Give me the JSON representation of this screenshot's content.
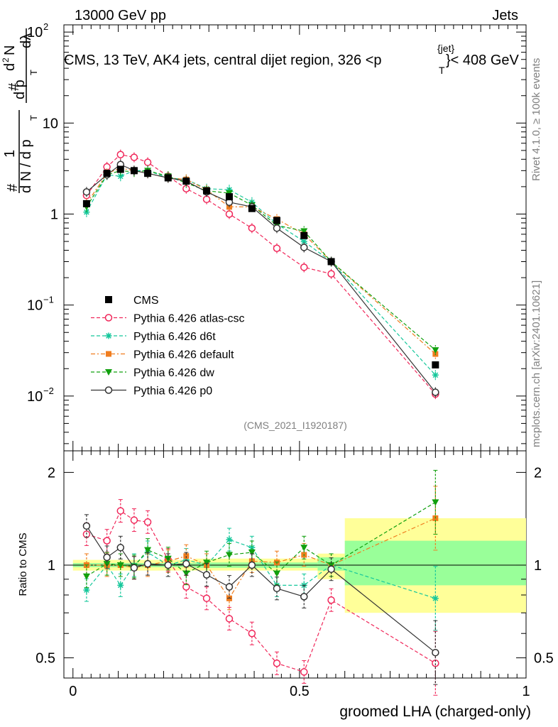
{
  "header": {
    "energy_label": "13000 GeV pp",
    "category_label": "Jets",
    "title": "CMS, 13 TeV, AK4 jets, central dijet region, 326 <p",
    "title_sup": "{jet}",
    "title_sub": "T",
    "title_tail": "}< 408 GeV"
  },
  "side_labels": {
    "rivet": "Rivet 4.1.0, ≥ 100k events",
    "mcplots": "mcplots.cern.ch [arXiv:2401.10621]"
  },
  "analysis_ref": "(CMS_2021_I1920187)",
  "y_axis_main": {
    "parts": [
      "#",
      "1",
      "d N / d p",
      "T",
      "#",
      "d p",
      "T",
      "d",
      "2",
      "N",
      "dλ"
    ]
  },
  "y_axis_ratio_label": "Ratio to CMS",
  "x_axis_label": "groomed LHA (charged-only)",
  "chart_data": [
    {
      "type": "line",
      "panel": "main",
      "yscale": "log",
      "ylim": [
        0.0025,
        120
      ],
      "xlim": [
        -0.02,
        1.0
      ],
      "y_ticks": [
        {
          "value": 0.01,
          "base": "10",
          "exp": "−2"
        },
        {
          "value": 0.1,
          "base": "10",
          "exp": "−1"
        },
        {
          "value": 1,
          "label": "1"
        },
        {
          "value": 10,
          "label": "10"
        },
        {
          "value": 100,
          "base": "10",
          "exp": "2"
        }
      ],
      "x": [
        0.03,
        0.075,
        0.105,
        0.135,
        0.165,
        0.21,
        0.25,
        0.295,
        0.345,
        0.395,
        0.45,
        0.51,
        0.57,
        0.8
      ],
      "data": {
        "name": "CMS",
        "values": [
          1.3,
          2.8,
          3.1,
          3.0,
          2.8,
          2.5,
          2.3,
          1.8,
          1.55,
          1.15,
          0.85,
          0.58,
          0.3,
          0.022
        ]
      },
      "series": [
        {
          "name": "Pythia 6.426 atlas-csc",
          "color": "#f0275a",
          "marker": "open-circle",
          "dash": "5,3",
          "values": [
            1.6,
            3.3,
            4.5,
            4.2,
            3.7,
            2.6,
            1.9,
            1.45,
            1.0,
            0.7,
            0.42,
            0.26,
            0.22,
            0.0105
          ],
          "ratio": [
            1.26,
            1.2,
            1.5,
            1.4,
            1.38,
            1.04,
            0.85,
            0.78,
            0.67,
            0.6,
            0.48,
            0.45,
            0.77,
            0.48
          ]
        },
        {
          "name": "Pythia 6.426 d6t",
          "color": "#15c79b",
          "marker": "star",
          "dash": "5,3",
          "values": [
            1.05,
            2.7,
            2.6,
            3.0,
            3.0,
            2.5,
            2.4,
            1.9,
            1.85,
            1.35,
            0.78,
            0.5,
            0.3,
            0.017
          ],
          "ratio": [
            0.83,
            1.0,
            0.86,
            1.0,
            1.1,
            1.0,
            1.04,
            1.0,
            1.21,
            1.14,
            0.86,
            0.86,
            1.0,
            0.78
          ]
        },
        {
          "name": "Pythia 6.426 default",
          "color": "#f07d1e",
          "marker": "filled-square",
          "dash": "6,3,2,3",
          "values": [
            1.3,
            2.8,
            3.2,
            3.0,
            2.8,
            2.5,
            2.4,
            1.85,
            1.2,
            1.2,
            0.88,
            0.6,
            0.3,
            0.029
          ],
          "ratio": [
            1.0,
            1.0,
            1.0,
            0.98,
            1.0,
            1.03,
            1.07,
            1.0,
            0.78,
            1.03,
            1.02,
            1.08,
            1.0,
            1.42
          ]
        },
        {
          "name": "Pythia 6.426 dw",
          "color": "#11a00e",
          "marker": "filled-triangle-down",
          "dash": "5,3",
          "values": [
            1.2,
            2.7,
            3.0,
            2.9,
            3.0,
            2.6,
            2.2,
            1.8,
            1.7,
            1.25,
            0.75,
            0.65,
            0.3,
            0.032
          ],
          "ratio": [
            0.92,
            1.01,
            1.0,
            0.99,
            1.12,
            1.05,
            0.94,
            1.02,
            1.08,
            1.1,
            0.94,
            1.14,
            1.0,
            1.6
          ]
        },
        {
          "name": "Pythia 6.426 p0",
          "color": "#333333",
          "marker": "open-circle",
          "dash": "",
          "values": [
            1.75,
            2.7,
            3.5,
            3.0,
            2.8,
            2.5,
            2.3,
            1.75,
            1.35,
            1.2,
            0.7,
            0.43,
            0.3,
            0.011
          ],
          "ratio": [
            1.34,
            1.06,
            1.14,
            0.98,
            1.01,
            1.0,
            1.01,
            0.93,
            0.85,
            1.0,
            0.84,
            0.79,
            0.97,
            0.52
          ]
        }
      ],
      "legend": [
        "CMS",
        "Pythia 6.426 atlas-csc",
        "Pythia 6.426 d6t",
        "Pythia 6.426 default",
        "Pythia 6.426 dw",
        "Pythia 6.426 p0"
      ],
      "legend_position": "left-middle"
    },
    {
      "type": "line",
      "panel": "ratio",
      "yscale": "log",
      "ylim": [
        0.43,
        2.35
      ],
      "xlim": [
        -0.02,
        1.0
      ],
      "y_ticks": [
        {
          "value": 0.5,
          "label": "0.5"
        },
        {
          "value": 1,
          "label": "1"
        },
        {
          "value": 2,
          "label": "2"
        }
      ],
      "x_ticks": [
        {
          "value": 0,
          "label": "0"
        },
        {
          "value": 0.5,
          "label": "0.5"
        },
        {
          "value": 1,
          "label": "1"
        }
      ],
      "reference_line": 1,
      "uncertainty_bands": [
        {
          "x0": 0.0,
          "x1": 0.27,
          "stat_lo": 0.985,
          "stat_hi": 1.015,
          "tot_lo": 0.96,
          "tot_hi": 1.04
        },
        {
          "x0": 0.27,
          "x1": 0.54,
          "stat_lo": 0.98,
          "stat_hi": 1.02,
          "tot_lo": 0.96,
          "tot_hi": 1.05
        },
        {
          "x0": 0.54,
          "x1": 0.6,
          "stat_lo": 0.96,
          "stat_hi": 1.06,
          "tot_lo": 0.9,
          "tot_hi": 1.09
        },
        {
          "x0": 0.6,
          "x1": 1.0,
          "stat_lo": 0.86,
          "stat_hi": 1.2,
          "tot_lo": 0.7,
          "tot_hi": 1.42
        }
      ]
    }
  ]
}
